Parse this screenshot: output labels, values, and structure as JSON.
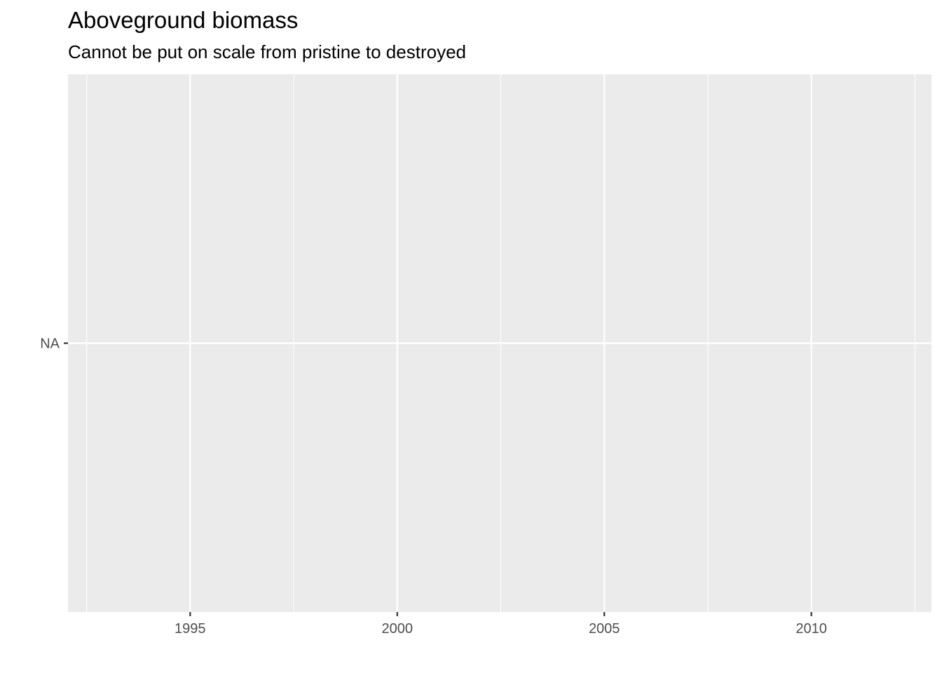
{
  "chart_data": {
    "type": "line",
    "title": "Aboveground biomass",
    "subtitle": "Cannot be put on scale from pristine to destroyed",
    "xlabel": "",
    "ylabel": "",
    "x_ticks": [
      1995,
      2000,
      2005,
      2010
    ],
    "x_minor_ticks": [
      1992.5,
      1997.5,
      2002.5,
      2007.5,
      2012.5
    ],
    "xlim": [
      1992.05,
      2012.9
    ],
    "y_ticks": [
      "NA"
    ],
    "series": [],
    "grid": true,
    "legend": "none",
    "colors": {
      "panel_background": "#ebebeb",
      "grid": "#ffffff",
      "tick_label": "#4d4d4d",
      "tick_mark": "#333333"
    }
  }
}
